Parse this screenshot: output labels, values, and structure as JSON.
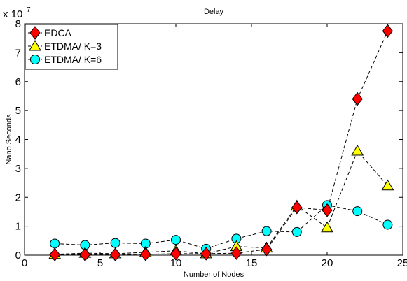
{
  "chart_data": {
    "type": "line",
    "title": "Delay",
    "xlabel": "Number of Nodes",
    "ylabel": "Nano Seconds",
    "y_multiplier": "x 10",
    "y_multiplier_exp": "7",
    "xlim": [
      0,
      25
    ],
    "ylim": [
      0,
      8
    ],
    "xticks": [
      0,
      5,
      10,
      15,
      20,
      25
    ],
    "yticks": [
      0,
      1,
      2,
      3,
      4,
      5,
      6,
      7,
      8
    ],
    "grid": false,
    "legend_position": "top-left",
    "series": [
      {
        "name": "EDCA",
        "marker": "diamond",
        "color": "#ff0000",
        "x": [
          2,
          4,
          6,
          8,
          10,
          12,
          14,
          16,
          18,
          20,
          22,
          24
        ],
        "y": [
          0.02,
          0.02,
          0.02,
          0.03,
          0.05,
          0.05,
          0.07,
          0.2,
          1.65,
          1.55,
          5.4,
          7.75
        ]
      },
      {
        "name": "ETDMA/ K=3",
        "marker": "triangle",
        "color": "#ffff00",
        "x": [
          2,
          4,
          6,
          8,
          10,
          12,
          14,
          16,
          18,
          20,
          22,
          24
        ],
        "y": [
          0.03,
          0.07,
          0.05,
          0.1,
          0.15,
          0.05,
          0.3,
          0.25,
          1.7,
          0.95,
          3.6,
          2.4
        ]
      },
      {
        "name": "ETDMA/ K=6",
        "marker": "circle",
        "color": "#00ffff",
        "x": [
          2,
          4,
          6,
          8,
          10,
          12,
          14,
          16,
          18,
          20,
          22,
          24
        ],
        "y": [
          0.4,
          0.35,
          0.42,
          0.4,
          0.53,
          0.22,
          0.57,
          0.83,
          0.8,
          1.73,
          1.52,
          1.05
        ]
      }
    ]
  }
}
